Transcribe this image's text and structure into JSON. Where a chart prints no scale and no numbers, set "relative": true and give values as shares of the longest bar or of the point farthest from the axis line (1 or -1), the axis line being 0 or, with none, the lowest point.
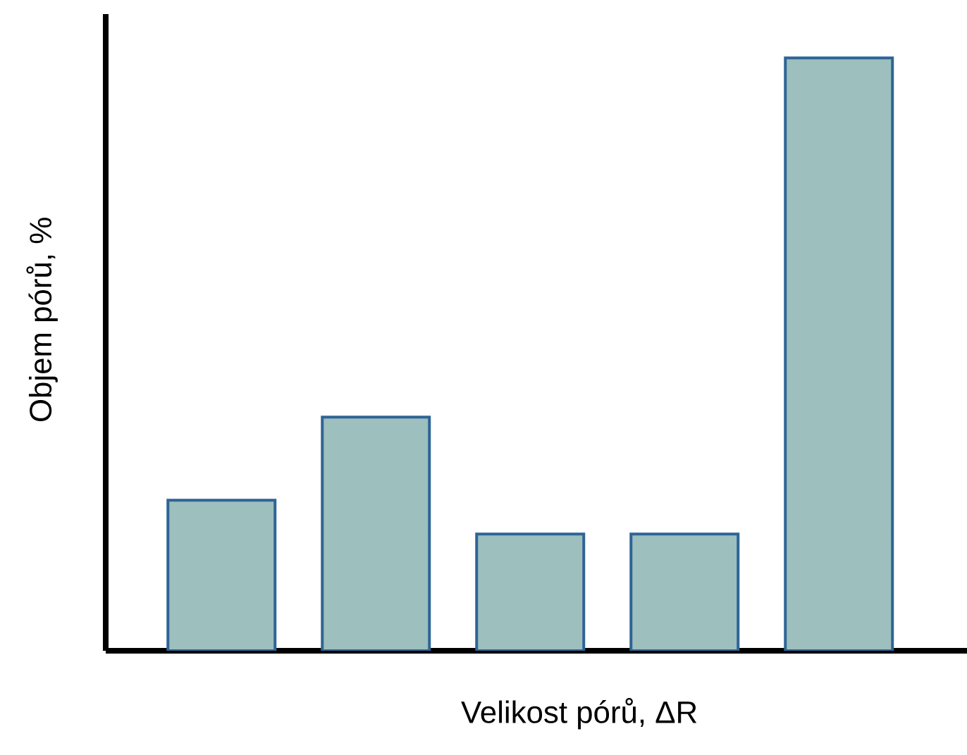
{
  "chart_data": {
    "type": "bar",
    "xlabel": "Velikost pórů, ΔR",
    "ylabel": "Objem pórů, %",
    "categories": [
      null,
      null,
      null,
      null,
      null
    ],
    "values": [
      0.254,
      0.394,
      0.197,
      0.197,
      1
    ],
    "color": "#9dbfbd",
    "relative": true
  }
}
